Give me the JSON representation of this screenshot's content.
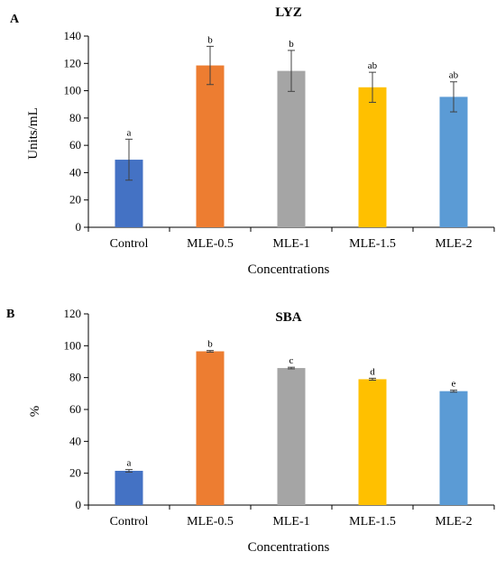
{
  "figure": {
    "panels": [
      "A",
      "B"
    ]
  },
  "chart_data": [
    {
      "type": "bar",
      "panel": "A",
      "title": "LYZ",
      "xlabel": "Concentrations",
      "ylabel": "Units/mL",
      "ylim": [
        0,
        140
      ],
      "yticks": [
        0,
        20,
        40,
        60,
        80,
        100,
        120,
        140
      ],
      "categories": [
        "Control",
        "MLE-0.5",
        "MLE-1",
        "MLE-1.5",
        "MLE-2"
      ],
      "values": [
        49.5,
        118.5,
        114.5,
        102.5,
        95.5
      ],
      "errors": [
        15,
        14,
        15,
        11,
        11
      ],
      "significance": [
        "a",
        "b",
        "b",
        "ab",
        "ab"
      ],
      "colors": [
        "#4472c4",
        "#ed7d31",
        "#a5a5a5",
        "#ffc000",
        "#5b9bd5"
      ],
      "grid": false
    },
    {
      "type": "bar",
      "panel": "B",
      "title": "SBA",
      "xlabel": "Concentrations",
      "ylabel": "%",
      "ylim": [
        0,
        120
      ],
      "yticks": [
        0,
        20,
        40,
        60,
        80,
        100,
        120
      ],
      "categories": [
        "Control",
        "MLE-0.5",
        "MLE-1",
        "MLE-1.5",
        "MLE-2"
      ],
      "values": [
        21.5,
        96.5,
        86,
        79,
        71.5
      ],
      "errors": [
        0.8,
        0.5,
        0.5,
        0.6,
        0.6
      ],
      "significance": [
        "a",
        "b",
        "c",
        "d",
        "e"
      ],
      "colors": [
        "#4472c4",
        "#ed7d31",
        "#a5a5a5",
        "#ffc000",
        "#5b9bd5"
      ],
      "grid": false
    }
  ]
}
